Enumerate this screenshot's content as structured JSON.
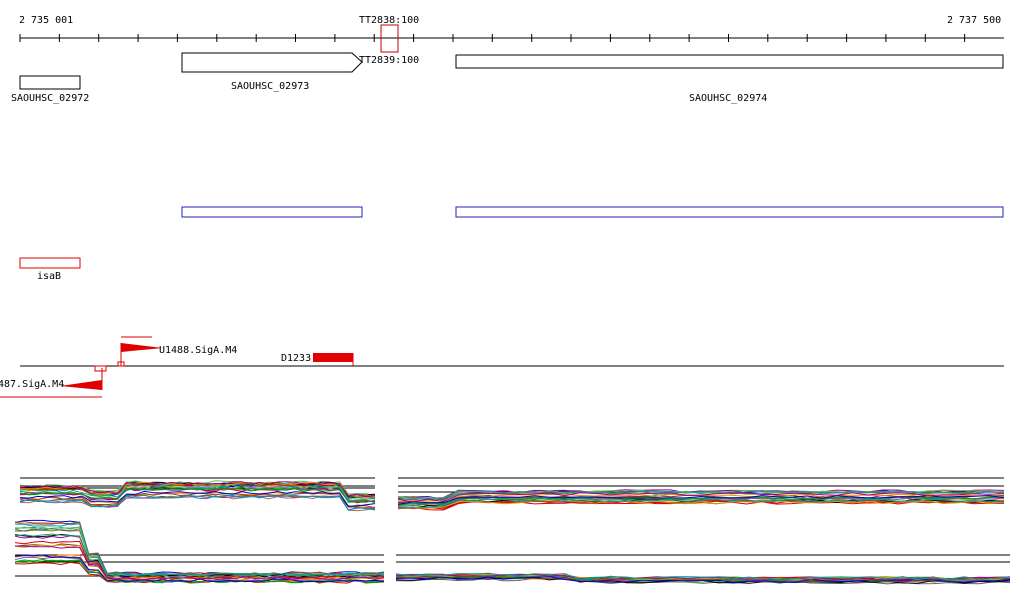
{
  "ruler": {
    "start_label": "2 735 001",
    "end_label": "2 737 500"
  },
  "marker": {
    "label_top": "TT2838:100",
    "label_bottom": "TT2839:100"
  },
  "genes": [
    {
      "label": "SAOUHSC_02972"
    },
    {
      "label": "SAOUHSC_02973"
    },
    {
      "label": "SAOUHSC_02974"
    }
  ],
  "rna_feature": {
    "label": "isaB"
  },
  "promoters": [
    {
      "label": "U1488.SigA.M4"
    },
    {
      "label": "487.SigA.M4"
    }
  ],
  "terminator": {
    "label": "D1233"
  },
  "colors": {
    "gene_outline": "#000000",
    "blue_track": "#2020c0",
    "feature_red": "#e00000",
    "marker": "#c00000"
  }
}
